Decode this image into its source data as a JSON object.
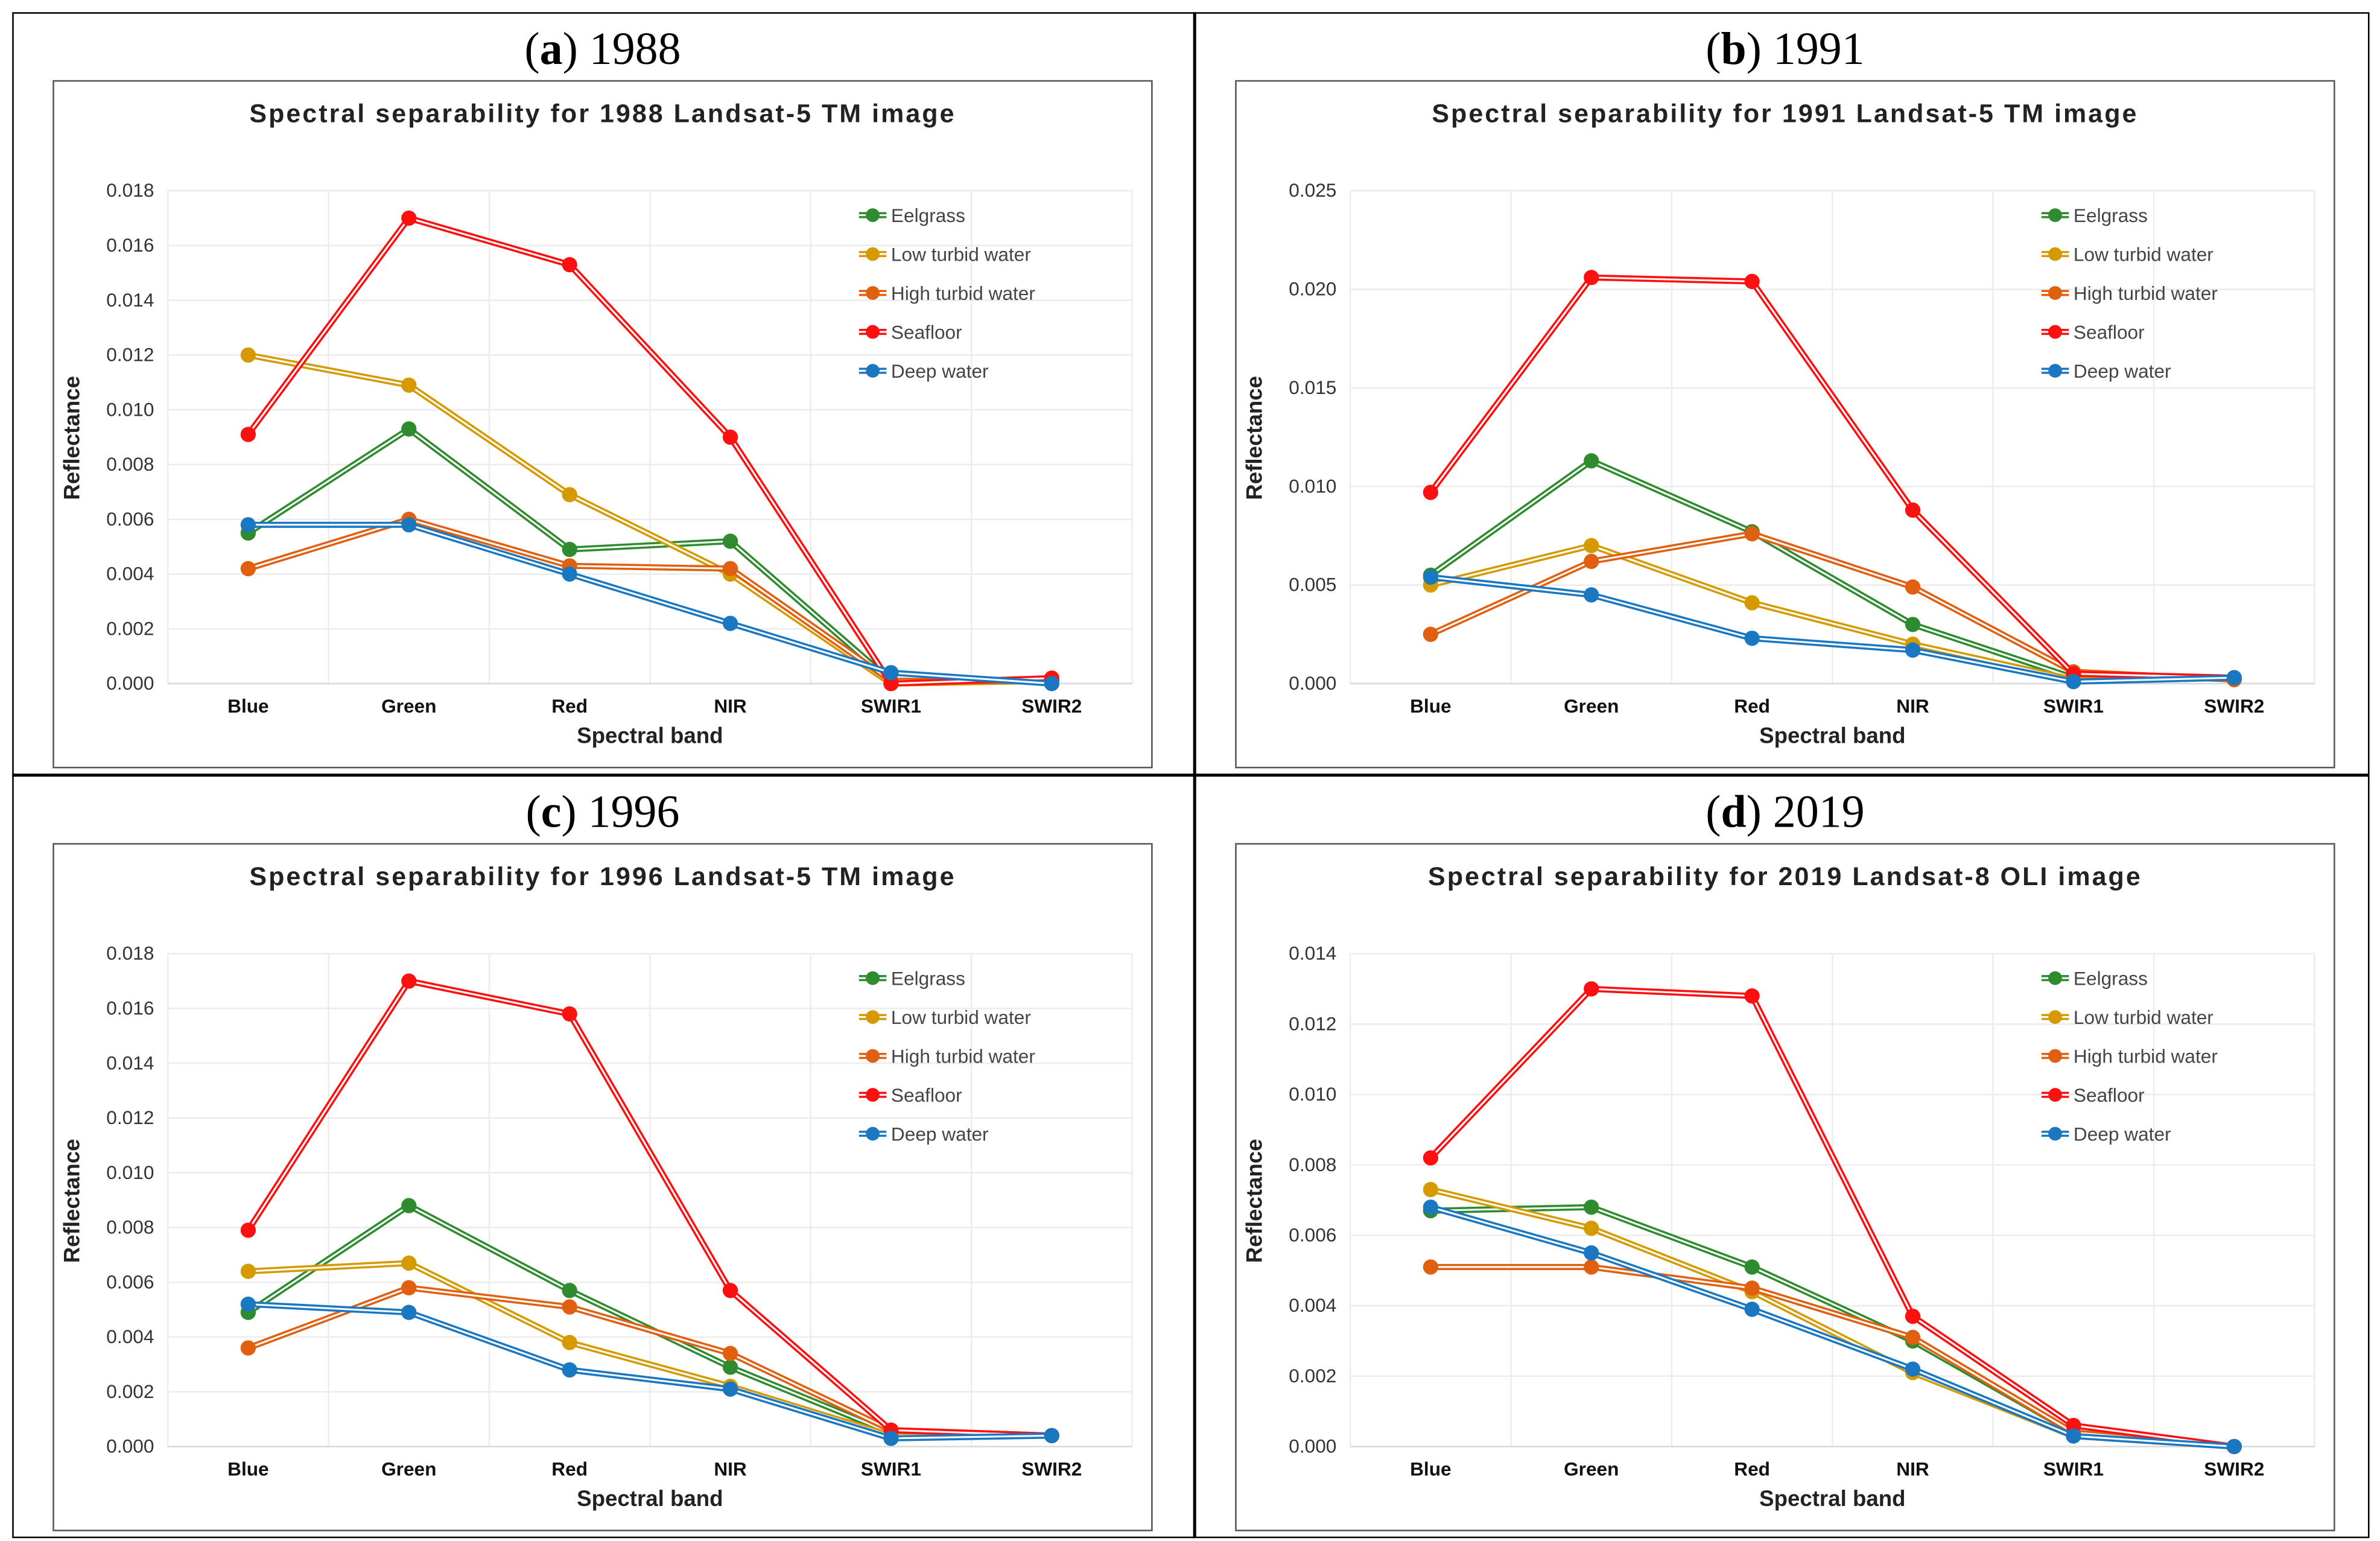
{
  "bands": [
    "Blue",
    "Green",
    "Red",
    "NIR",
    "SWIR1",
    "SWIR2"
  ],
  "legend": [
    "Eelgrass",
    "Low turbid water",
    "High turbid water",
    "Seafloor",
    "Deep water"
  ],
  "colors": {
    "Eelgrass": "#2e8b2e",
    "Low turbid water": "#d49a00",
    "High turbid water": "#e06010",
    "Seafloor": "#ff1010",
    "Deep water": "#1a78c2"
  },
  "chart_data": [
    {
      "type": "line",
      "panel_letter": "a",
      "panel_year": "1988",
      "title": "Spectral separability for 1988 Landsat-5 TM image",
      "xlabel": "Spectral band",
      "ylabel": "Reflectance",
      "ylim": [
        0,
        0.018
      ],
      "ystep": 0.002,
      "grid": true,
      "legend_position": "top-right",
      "categories": [
        "Blue",
        "Green",
        "Red",
        "NIR",
        "SWIR1",
        "SWIR2"
      ],
      "series": [
        {
          "name": "Eelgrass",
          "values": [
            0.0055,
            0.0093,
            0.0049,
            0.0052,
            0.0001,
            0.0001
          ]
        },
        {
          "name": "Low turbid water",
          "values": [
            0.012,
            0.0109,
            0.0069,
            0.004,
            0.0,
            0.0001
          ]
        },
        {
          "name": "High turbid water",
          "values": [
            0.0042,
            0.006,
            0.0043,
            0.0042,
            0.0001,
            0.0001
          ]
        },
        {
          "name": "Seafloor",
          "values": [
            0.0091,
            0.017,
            0.0153,
            0.009,
            0.0,
            0.0002
          ]
        },
        {
          "name": "Deep water",
          "values": [
            0.0058,
            0.0058,
            0.004,
            0.0022,
            0.0004,
            0.0
          ]
        }
      ]
    },
    {
      "type": "line",
      "panel_letter": "b",
      "panel_year": "1991",
      "title": "Spectral separability for 1991 Landsat-5 TM image",
      "xlabel": "Spectral band",
      "ylabel": "Reflectance",
      "ylim": [
        0,
        0.025
      ],
      "ystep": 0.005,
      "grid": true,
      "legend_position": "top-right",
      "categories": [
        "Blue",
        "Green",
        "Red",
        "NIR",
        "SWIR1",
        "SWIR2"
      ],
      "series": [
        {
          "name": "Eelgrass",
          "values": [
            0.0055,
            0.0113,
            0.0077,
            0.003,
            0.0003,
            0.0003
          ]
        },
        {
          "name": "Low turbid water",
          "values": [
            0.005,
            0.007,
            0.0041,
            0.002,
            0.0002,
            0.0003
          ]
        },
        {
          "name": "High turbid water",
          "values": [
            0.0025,
            0.0062,
            0.0076,
            0.0049,
            0.0006,
            0.0002
          ]
        },
        {
          "name": "Seafloor",
          "values": [
            0.0097,
            0.0206,
            0.0204,
            0.0088,
            0.0005,
            0.0003
          ]
        },
        {
          "name": "Deep water",
          "values": [
            0.0054,
            0.0045,
            0.0023,
            0.0017,
            0.0001,
            0.0003
          ]
        }
      ]
    },
    {
      "type": "line",
      "panel_letter": "c",
      "panel_year": "1996",
      "title": "Spectral separability for 1996 Landsat-5 TM image",
      "xlabel": "Spectral band",
      "ylabel": "Reflectance",
      "ylim": [
        0,
        0.018
      ],
      "ystep": 0.002,
      "grid": true,
      "legend_position": "top-right",
      "categories": [
        "Blue",
        "Green",
        "Red",
        "NIR",
        "SWIR1",
        "SWIR2"
      ],
      "series": [
        {
          "name": "Eelgrass",
          "values": [
            0.0049,
            0.0088,
            0.0057,
            0.0029,
            0.0005,
            0.0004
          ]
        },
        {
          "name": "Low turbid water",
          "values": [
            0.0064,
            0.0067,
            0.0038,
            0.0022,
            0.0004,
            0.0004
          ]
        },
        {
          "name": "High turbid water",
          "values": [
            0.0036,
            0.0058,
            0.0051,
            0.0034,
            0.0006,
            0.0004
          ]
        },
        {
          "name": "Seafloor",
          "values": [
            0.0079,
            0.017,
            0.0158,
            0.0057,
            0.0006,
            0.0004
          ]
        },
        {
          "name": "Deep water",
          "values": [
            0.0052,
            0.0049,
            0.0028,
            0.0021,
            0.0003,
            0.0004
          ]
        }
      ]
    },
    {
      "type": "line",
      "panel_letter": "d",
      "panel_year": "2019",
      "title": "Spectral separability for 2019 Landsat-8 OLI image",
      "xlabel": "Spectral band",
      "ylabel": "Reflectance",
      "ylim": [
        0,
        0.014
      ],
      "ystep": 0.002,
      "grid": true,
      "legend_position": "top-right",
      "categories": [
        "Blue",
        "Green",
        "Red",
        "NIR",
        "SWIR1",
        "SWIR2"
      ],
      "series": [
        {
          "name": "Eelgrass",
          "values": [
            0.0067,
            0.0068,
            0.0051,
            0.003,
            0.0004,
            0.0
          ]
        },
        {
          "name": "Low turbid water",
          "values": [
            0.0073,
            0.0062,
            0.0044,
            0.0021,
            0.0003,
            0.0
          ]
        },
        {
          "name": "High turbid water",
          "values": [
            0.0051,
            0.0051,
            0.0045,
            0.0031,
            0.0004,
            0.0
          ]
        },
        {
          "name": "Seafloor",
          "values": [
            0.0082,
            0.013,
            0.0128,
            0.0037,
            0.0006,
            0.0
          ]
        },
        {
          "name": "Deep water",
          "values": [
            0.0068,
            0.0055,
            0.0039,
            0.0022,
            0.0003,
            0.0
          ]
        }
      ]
    }
  ]
}
